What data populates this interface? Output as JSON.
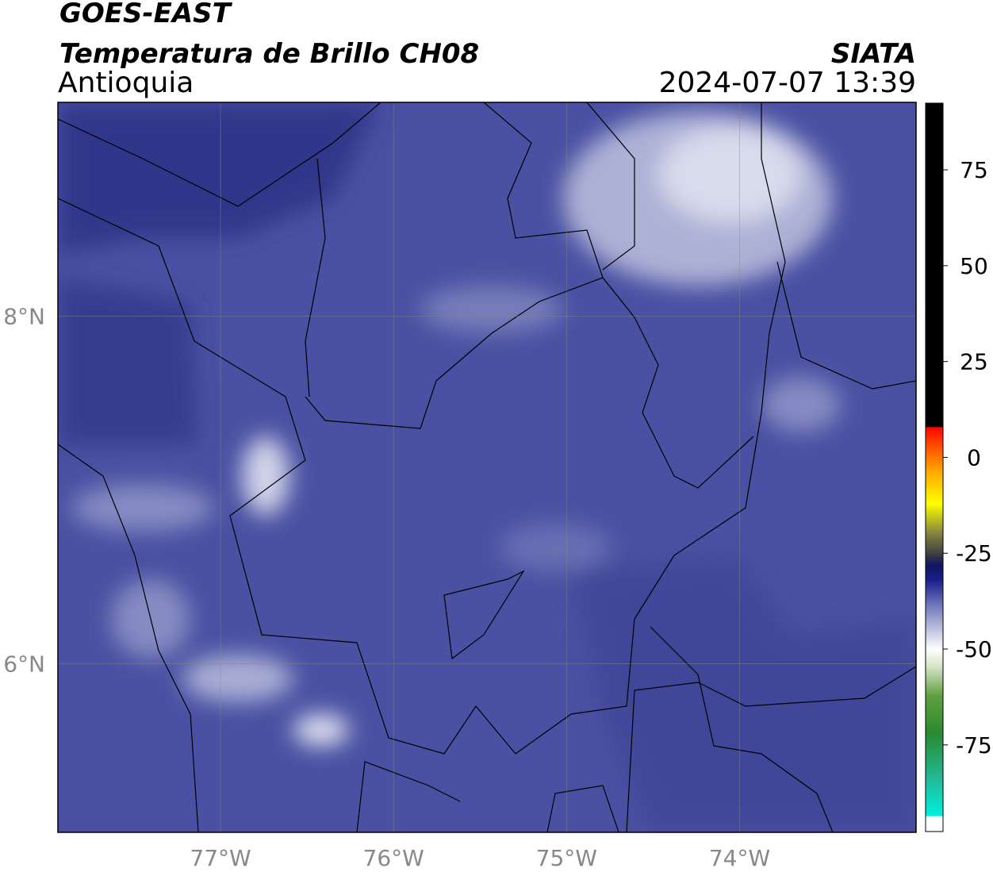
{
  "header": {
    "title": "GOES-EAST",
    "subtitle": "Temperatura de Brillo CH08",
    "region": "Antioquia",
    "source": "SIATA",
    "datetime": "2024-07-07 13:39"
  },
  "map": {
    "xlim": [
      -77.94,
      -72.98
    ],
    "ylim": [
      5.03,
      9.23
    ],
    "xticks": [
      {
        "value": -77,
        "label": "77°W"
      },
      {
        "value": -76,
        "label": "76°W"
      },
      {
        "value": -75,
        "label": "75°W"
      },
      {
        "value": -74,
        "label": "74°W"
      }
    ],
    "yticks": [
      {
        "value": 6,
        "label": "6°N"
      },
      {
        "value": 8,
        "label": "8°N"
      }
    ],
    "grid": true
  },
  "colorbar": {
    "lim": [
      -97.6,
      92.4
    ],
    "ticks": [
      75,
      50,
      25,
      0,
      -25,
      -50,
      -75
    ],
    "colormap": [
      [
        -97.6,
        "#ffffff"
      ],
      [
        -93.5,
        "#ffffff"
      ],
      [
        -93.5,
        "#00f0e0"
      ],
      [
        -85,
        "#20c0a0"
      ],
      [
        -72,
        "#2a8a30"
      ],
      [
        -62,
        "#60a040"
      ],
      [
        -55,
        "#d0e0c0"
      ],
      [
        -50,
        "#ffffff"
      ],
      [
        -45,
        "#c0c4e0"
      ],
      [
        -38,
        "#6a70b8"
      ],
      [
        -32,
        "#1a1f8a"
      ],
      [
        -28,
        "#101560"
      ],
      [
        -25,
        "#404040"
      ],
      [
        -20,
        "#808040"
      ],
      [
        -12,
        "#ffff00"
      ],
      [
        -3,
        "#ffa000"
      ],
      [
        5,
        "#ff3000"
      ],
      [
        8,
        "#ff0000"
      ],
      [
        8,
        "#000000"
      ],
      [
        92.4,
        "#000000"
      ]
    ]
  }
}
